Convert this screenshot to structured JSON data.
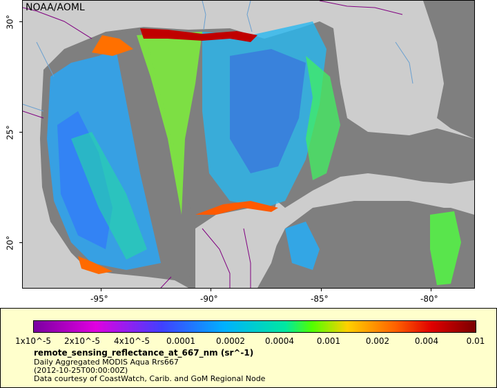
{
  "map": {
    "source_label": "NOAA/AOML",
    "lat_labels": [
      "30°",
      "25°",
      "20°"
    ],
    "lon_labels": [
      "-95°",
      "-90°",
      "-85°",
      "-80°"
    ],
    "colors": {
      "ocean_nodata": "#7f7f7f",
      "land": "#cdcdcd",
      "border": "#800080",
      "rivers": "#6aa0d0"
    }
  },
  "legend": {
    "colorbar_labels": [
      "1x10^-5",
      "2x10^-5",
      "4x10^-5",
      "0.0001",
      "0.0002",
      "0.0004",
      "0.001",
      "0.002",
      "0.004",
      "0.01"
    ],
    "variable": "remote_sensing_reflectance_at_667_nm (sr^-1)",
    "product": "Daily Aggregated MODIS Aqua Rrs667",
    "time": "(2012-10-25T00:00:00Z)",
    "credit": "Data courtesy of CoastWatch, Carib. and GoM Regional Node"
  }
}
